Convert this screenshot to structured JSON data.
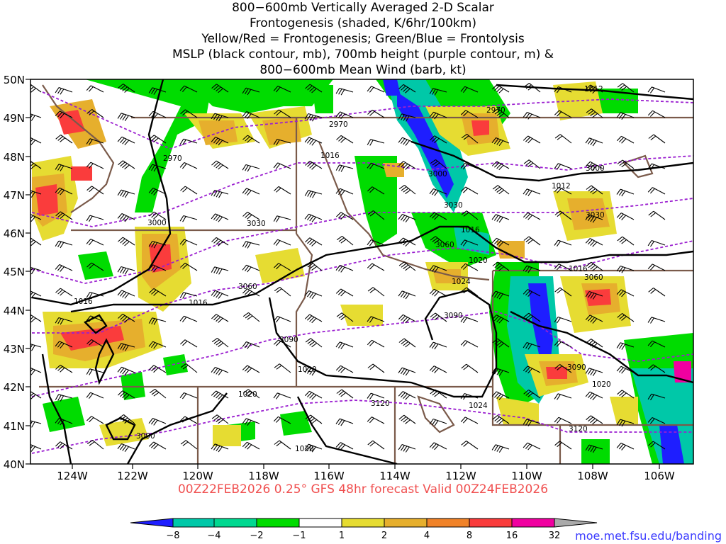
{
  "title_lines": [
    "800−600mb Vertically Averaged 2-D Scalar",
    "Frontogenesis (shaded, K/6hr/100km)",
    "Yellow/Red = Frontogenesis;  Green/Blue = Frontolysis",
    "MSLP (black contour, mb), 700mb height (purple contour, m) &",
    "800−600mb Mean Wind (barb, kt)"
  ],
  "valid_line": "00Z22FEB2026 0.25° GFS 48hr forecast Valid 00Z24FEB2026",
  "source_url": "moe.met.fsu.edu/banding",
  "lat_labels": [
    "50N",
    "49N",
    "48N",
    "47N",
    "46N",
    "45N",
    "44N",
    "43N",
    "42N",
    "41N",
    "40N"
  ],
  "lon_labels": [
    "124W",
    "122W",
    "120W",
    "118W",
    "116W",
    "114W",
    "112W",
    "110W",
    "108W",
    "106W"
  ],
  "colorbar": {
    "labels": [
      "−8",
      "−4",
      "−2",
      "−1",
      "1",
      "2",
      "4",
      "8",
      "16",
      "32"
    ],
    "colors": [
      "#1e1eff",
      "#00c8a8",
      "#00d890",
      "#00dc00",
      "#ffffff",
      "#e6dc32",
      "#e6af2d",
      "#f08228",
      "#fa3c3c",
      "#f000a0",
      "#000000",
      "#aaaaaa"
    ]
  },
  "contour_labels": {
    "mslp": [
      "1012",
      "1012",
      "1016",
      "1016",
      "1016",
      "1016",
      "1020",
      "1024",
      "1020",
      "1020",
      "1020",
      "1020",
      "1024",
      "1016"
    ],
    "height_700mb": [
      "2970",
      "2970",
      "2970",
      "3000",
      "3000",
      "3000",
      "3030",
      "3030",
      "3030",
      "3060",
      "3060",
      "3060",
      "3090",
      "3090",
      "3090",
      "3090",
      "3120",
      "3120"
    ]
  },
  "colors": {
    "mslp_contour": "#000000",
    "height_contour": "#9b1fd0",
    "borders": "#7a5a4a",
    "barbs": "#000000"
  }
}
